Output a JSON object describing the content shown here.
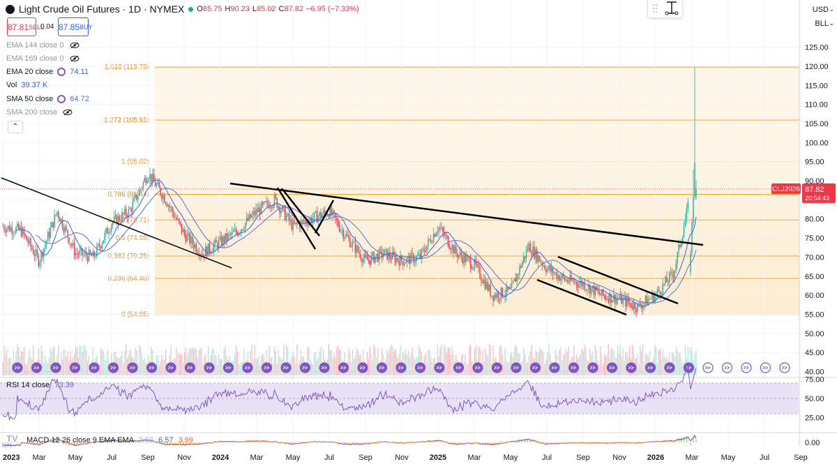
{
  "header": {
    "title": "Light Crude Oil Futures · 1D · NYMEX",
    "ohlc_open_label": "O",
    "ohlc_open": "85.75",
    "ohlc_high_label": "H",
    "ohlc_high": "90.23",
    "ohlc_low_label": "L",
    "ohlc_low": "85.02",
    "ohlc_close_label": "C",
    "ohlc_close": "87.82",
    "change": "−6.95 (−7.33%)"
  },
  "trade": {
    "sell_price": "87.81",
    "sell_label": "SELL",
    "spread": "0.04",
    "buy_price": "87.85",
    "buy_label": "BUY"
  },
  "indicators": [
    {
      "label": "EMA 144 close 0",
      "value": "",
      "hidden": true
    },
    {
      "label": "EMA 169 close 0",
      "value": "",
      "hidden": true
    },
    {
      "label": "EMA 20 close",
      "value": "74.11",
      "hidden": false
    },
    {
      "label": "Vol",
      "value": "39.37 K",
      "hidden": false
    },
    {
      "label": "SMA 50 close",
      "value": "64.72",
      "hidden": false
    },
    {
      "label": "SMA 200 close",
      "value": "",
      "hidden": true
    }
  ],
  "currency": "USD",
  "unit": "BLL",
  "symbol_tag": "CLJ2026",
  "last_price": "87.82",
  "countdown": "20:54:43",
  "rsi": {
    "label": "RSI 14 close",
    "value": "73.39",
    "ticks": [
      "75.00",
      "50.00",
      "25.00"
    ],
    "levels": [
      70,
      50,
      30
    ]
  },
  "macd": {
    "label": "MACD 12 26 close 9 EMA EMA",
    "v1": "2.58",
    "v2": "6.57",
    "v3": "3.99",
    "ticks": [
      "0.00"
    ]
  },
  "colors": {
    "fib": "#f7a823",
    "bull": "#22ab94",
    "bear": "#f23645",
    "ema20": "#2962ff",
    "sma50": "#5b6fd6",
    "rsi": "#7e57c2",
    "rsi_fill": "#e9e2f7",
    "label": "#131722"
  },
  "chart_data": {
    "type": "candlestick",
    "instrument": "Light Crude Oil Futures",
    "interval": "1D",
    "ylim": [
      40,
      130
    ],
    "price_ticks": [
      "125.00",
      "120.00",
      "115.00",
      "110.00",
      "105.00",
      "100.00",
      "95.00",
      "90.00",
      "85.00",
      "80.00",
      "75.00",
      "70.00",
      "65.00",
      "60.00",
      "55.00",
      "50.00",
      "45.00",
      "40.00"
    ],
    "x_labels": [
      "2023",
      "Mar",
      "May",
      "Jul",
      "Sep",
      "Nov",
      "2024",
      "Mar",
      "May",
      "Jul",
      "Sep",
      "Nov",
      "2025",
      "Mar",
      "May",
      "Jul",
      "Sep",
      "Nov",
      "2026",
      "Mar",
      "May",
      "Jul",
      "Sep"
    ],
    "fib_levels": [
      {
        "label": "1.618 (119.78)",
        "price": 119.78
      },
      {
        "label": "1.272 (105.91)",
        "price": 105.91
      },
      {
        "label": "1 (95.02)",
        "price": 95.02
      },
      {
        "label": "0.786 (86.44)",
        "price": 86.44
      },
      {
        "label": "0.618 (79.71)",
        "price": 79.71
      },
      {
        "label": "0.5 (74.98)",
        "price": 74.98
      },
      {
        "label": "0.382 (70.25)",
        "price": 70.25
      },
      {
        "label": "0.236 (64.40)",
        "price": 64.4
      },
      {
        "label": "0 (54.95)",
        "price": 54.95
      }
    ],
    "price_path": [
      [
        "2023-01",
        78
      ],
      [
        "2023-02",
        77
      ],
      [
        "2023-03",
        69
      ],
      [
        "2023-04",
        82
      ],
      [
        "2023-05",
        71
      ],
      [
        "2023-06",
        70
      ],
      [
        "2023-07",
        79
      ],
      [
        "2023-08",
        82
      ],
      [
        "2023-09",
        92
      ],
      [
        "2023-10",
        85
      ],
      [
        "2023-11",
        76
      ],
      [
        "2023-12",
        71
      ],
      [
        "2024-01",
        74
      ],
      [
        "2024-02",
        77
      ],
      [
        "2024-03",
        82
      ],
      [
        "2024-04",
        85
      ],
      [
        "2024-05",
        78
      ],
      [
        "2024-06",
        80
      ],
      [
        "2024-07",
        82
      ],
      [
        "2024-08",
        75
      ],
      [
        "2024-09",
        69
      ],
      [
        "2024-10",
        71
      ],
      [
        "2024-11",
        69
      ],
      [
        "2024-12",
        70
      ],
      [
        "2025-01",
        78
      ],
      [
        "2025-02",
        71
      ],
      [
        "2025-03",
        68
      ],
      [
        "2025-04",
        60
      ],
      [
        "2025-05",
        61
      ],
      [
        "2025-06",
        73
      ],
      [
        "2025-07",
        67
      ],
      [
        "2025-08",
        64
      ],
      [
        "2025-09",
        63
      ],
      [
        "2025-10",
        60
      ],
      [
        "2025-11",
        59
      ],
      [
        "2025-12",
        57
      ],
      [
        "2026-01",
        60
      ],
      [
        "2026-02",
        66
      ],
      [
        "2026-03",
        87.82
      ]
    ],
    "last": {
      "open": 85.75,
      "high": 90.23,
      "low": 85.02,
      "close": 87.82,
      "spike_high": 119.78
    }
  }
}
